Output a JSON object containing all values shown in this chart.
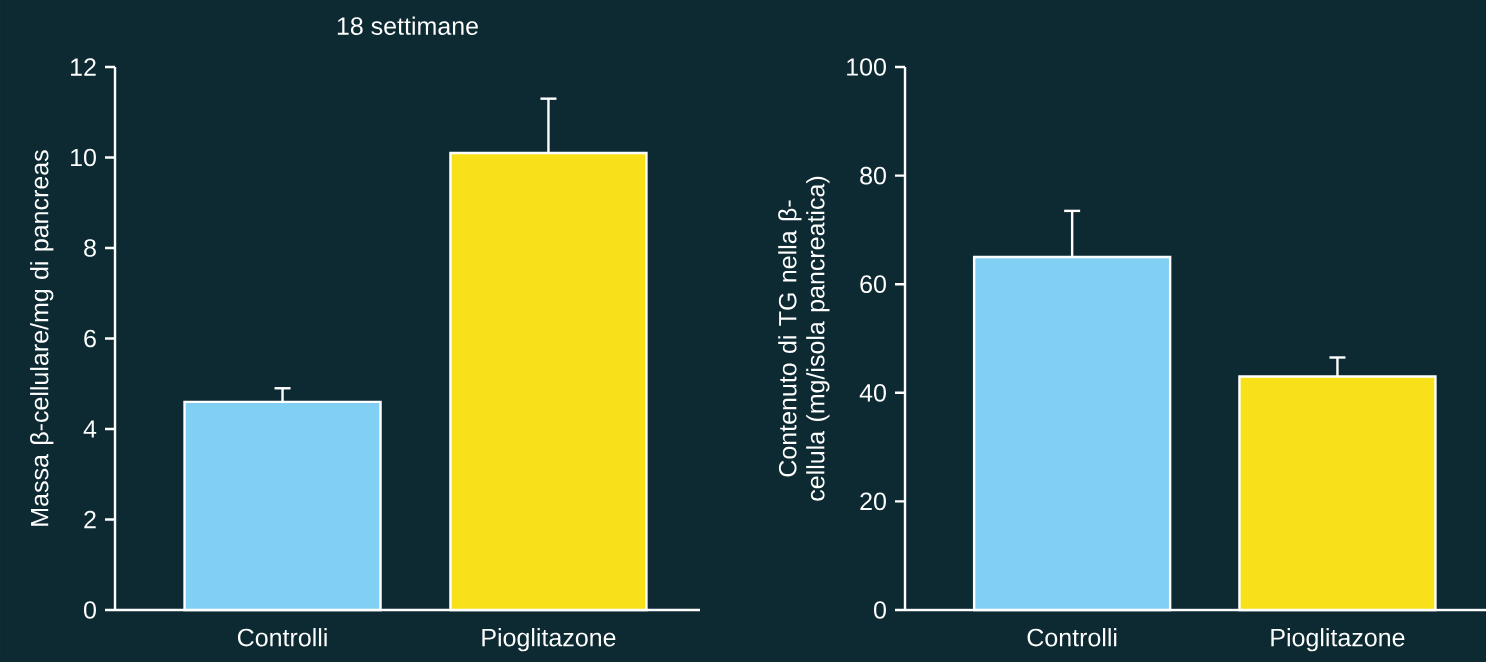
{
  "chart_data": [
    {
      "type": "bar",
      "title": "18 settimane",
      "ylabel": "Massa β-cellulare/mg di pancreas",
      "categories": [
        "Controlli",
        "Pioglitazone"
      ],
      "values": [
        4.6,
        10.1
      ],
      "errors": [
        0.3,
        1.2
      ],
      "colors": [
        "#82cff4",
        "#f9e11a"
      ],
      "ylim": [
        0,
        12
      ],
      "yticks": [
        0,
        2,
        4,
        6,
        8,
        10,
        12
      ]
    },
    {
      "type": "bar",
      "ylabel": "Contenuto di TG nella β-cellula (mg/isola pancreatica)",
      "categories": [
        "Controlli",
        "Pioglitazone"
      ],
      "values": [
        65,
        43
      ],
      "errors": [
        8.5,
        3.5
      ],
      "colors": [
        "#82cff4",
        "#f9e11a"
      ],
      "ylim": [
        0,
        100
      ],
      "yticks": [
        0,
        20,
        40,
        60,
        80,
        100
      ]
    }
  ]
}
